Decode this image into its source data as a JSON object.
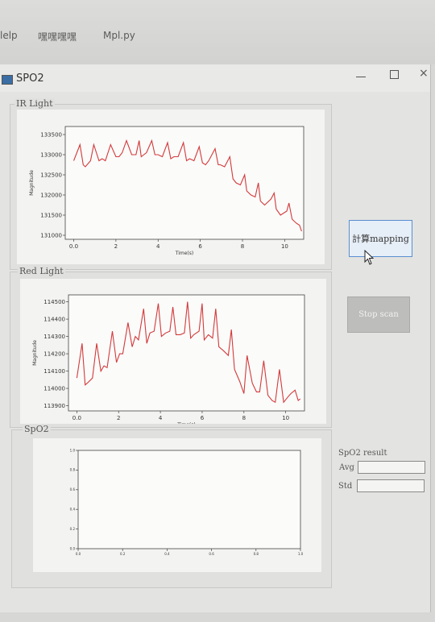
{
  "menubar": {
    "items": [
      {
        "label": "lelp"
      },
      {
        "label": "嘿嘿嘿嘿"
      },
      {
        "label": "Mpl.py"
      }
    ]
  },
  "window": {
    "title": "SPO2",
    "close_glyph": "×"
  },
  "ir_group": {
    "title": "IR Light"
  },
  "red_group": {
    "title": "Red Light"
  },
  "spo2_group": {
    "title": "SpO2"
  },
  "buttons": {
    "mapping_label": "計算mapping",
    "stop_label": "Stop scan"
  },
  "result": {
    "title": "SpO2 result",
    "avg_label": "Avg",
    "avg_value": "",
    "std_label": "Std",
    "std_value": ""
  },
  "left_mark": "/",
  "colors": {
    "trace": "#d23a3a",
    "accent": "#5a8fd0"
  },
  "chart_data": [
    {
      "type": "line",
      "name": "ir-light-chart",
      "xlabel": "Time(s)",
      "ylabel": "Magnitude",
      "xlim": [
        -0.4,
        10.9
      ],
      "ylim": [
        130900,
        133700
      ],
      "xticks": [
        0,
        2,
        4,
        6,
        8,
        10
      ],
      "yticks": [
        131000,
        131500,
        132000,
        132500,
        133000,
        133500
      ],
      "x": [
        0,
        0.3,
        0.45,
        0.55,
        0.8,
        0.95,
        1.2,
        1.35,
        1.5,
        1.75,
        2.0,
        2.15,
        2.3,
        2.5,
        2.75,
        2.95,
        3.1,
        3.2,
        3.45,
        3.7,
        3.85,
        4.0,
        4.2,
        4.45,
        4.6,
        4.75,
        4.95,
        5.2,
        5.35,
        5.5,
        5.7,
        5.95,
        6.1,
        6.25,
        6.4,
        6.7,
        6.85,
        6.95,
        7.15,
        7.4,
        7.55,
        7.7,
        7.9,
        8.1,
        8.2,
        8.4,
        8.6,
        8.75,
        8.85,
        9.05,
        9.35,
        9.5,
        9.6,
        9.8,
        10.1,
        10.2,
        10.35,
        10.55,
        10.7,
        10.8
      ],
      "y": [
        132850,
        133250,
        132750,
        132700,
        132850,
        133250,
        132850,
        132900,
        132850,
        133250,
        132950,
        132950,
        133050,
        133350,
        133000,
        133000,
        133350,
        132950,
        133050,
        133350,
        133000,
        133000,
        132950,
        133300,
        132900,
        132950,
        132950,
        133300,
        132850,
        132900,
        132850,
        133200,
        132800,
        132750,
        132850,
        133150,
        132750,
        132750,
        132700,
        132950,
        132400,
        132300,
        132250,
        132500,
        132100,
        132000,
        131950,
        132300,
        131850,
        131750,
        131900,
        132050,
        131650,
        131500,
        131600,
        131800,
        131400,
        131300,
        131250,
        131100
      ]
    },
    {
      "type": "line",
      "name": "red-light-chart",
      "xlabel": "Time(s)",
      "ylabel": "Magnitude",
      "xlim": [
        -0.4,
        10.9
      ],
      "ylim": [
        113870,
        114540
      ],
      "xticks": [
        0,
        2,
        4,
        6,
        8,
        10
      ],
      "yticks": [
        113900,
        114000,
        114100,
        114200,
        114300,
        114400,
        114500
      ],
      "x": [
        0,
        0.25,
        0.4,
        0.5,
        0.75,
        0.95,
        1.15,
        1.3,
        1.45,
        1.7,
        1.9,
        2.05,
        2.2,
        2.45,
        2.65,
        2.8,
        2.95,
        3.2,
        3.35,
        3.5,
        3.7,
        3.9,
        4.05,
        4.25,
        4.45,
        4.6,
        4.75,
        4.95,
        5.15,
        5.3,
        5.45,
        5.6,
        5.85,
        6.0,
        6.1,
        6.3,
        6.5,
        6.65,
        6.8,
        7.0,
        7.25,
        7.4,
        7.55,
        7.8,
        8.0,
        8.15,
        8.4,
        8.6,
        8.75,
        8.95,
        9.15,
        9.35,
        9.5,
        9.7,
        9.9,
        10.1,
        10.25,
        10.45,
        10.6,
        10.7
      ],
      "y": [
        114060,
        114260,
        114020,
        114030,
        114060,
        114260,
        114100,
        114130,
        114120,
        114330,
        114150,
        114200,
        114200,
        114380,
        114240,
        114300,
        114280,
        114460,
        114260,
        114320,
        114330,
        114490,
        114300,
        114320,
        114330,
        114470,
        114310,
        114310,
        114320,
        114500,
        114290,
        114310,
        114330,
        114490,
        114280,
        114310,
        114290,
        114460,
        114240,
        114220,
        114190,
        114340,
        114110,
        114040,
        113970,
        114190,
        114030,
        113980,
        113980,
        114160,
        113960,
        113930,
        113920,
        114110,
        113920,
        113950,
        113970,
        113990,
        113930,
        113940
      ]
    },
    {
      "type": "line",
      "name": "spo2-chart",
      "xlim": [
        0,
        1.0
      ],
      "ylim": [
        0,
        1.0
      ],
      "xticks": [
        0,
        0.2,
        0.4,
        0.6,
        0.8,
        1.0
      ],
      "yticks": [
        0,
        0.2,
        0.4,
        0.6,
        0.8,
        1.0
      ],
      "x": [],
      "y": []
    }
  ]
}
